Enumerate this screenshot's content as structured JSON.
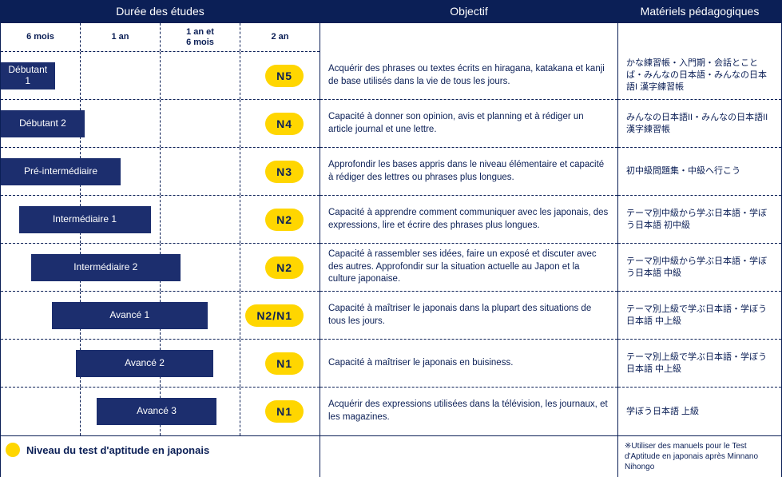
{
  "headers": {
    "duration": "Durée des études",
    "objective": "Objectif",
    "materials": "Matériels pédagogiques"
  },
  "timeAxis": [
    "6 mois",
    "1 an",
    "1 an et\n6 mois",
    "2 an"
  ],
  "chart": {
    "tickWidthPx": 75,
    "barHeightPx": 34,
    "barColor": "#1c2e6e",
    "badgeBg": "#ffd600",
    "badgeFg": "#0b1f56",
    "gridColor": "#0b1f56",
    "textColor": "#0b1f56"
  },
  "rows": [
    {
      "level": "Débutant 1",
      "barStartTicks": 0,
      "barEndTicks": 0.9,
      "badge": "N5",
      "objective": "Acquérir des phrases ou textes écrits en hiragana, katakana et kanji de base utilisés dans la vie de tous les jours.",
      "materials": "かな練習帳・入門期・会話とことば・みんなの日本語・みんなの日本語I 漢字練習帳"
    },
    {
      "level": "Débutant 2",
      "barStartTicks": 0,
      "barEndTicks": 1.4,
      "badge": "N4",
      "objective": "Capacité à donner son opinion, avis et planning et à rédiger un article journal et une lettre.",
      "materials": "みんなの日本語II・みんなの日本語II 漢字練習帳"
    },
    {
      "level": "Pré-intermédiaire",
      "barStartTicks": 0,
      "barEndTicks": 2.0,
      "badge": "N3",
      "objective": "Approfondir les bases appris dans le niveau élémentaire et capacité à rédiger des lettres ou phrases plus longues.",
      "materials": "初中級問題集・中級へ行こう"
    },
    {
      "level": "Intermédiaire 1",
      "barStartTicks": 0.3,
      "barEndTicks": 2.5,
      "badge": "N2",
      "objective": "Capacité à apprendre comment communiquer avec les japonais, des expressions, lire et écrire des phrases plus longues.",
      "materials": "テーマ別中級から学ぶ日本語・学ぼう日本語 初中級"
    },
    {
      "level": "Intermédiaire 2",
      "barStartTicks": 0.5,
      "barEndTicks": 3.0,
      "badge": "N2",
      "objective": "Capacité à rassembler ses idées, faire un exposé et discuter avec des autres. Approfondir sur la situation actuelle au Japon et la culture japonaise.",
      "materials": "テーマ別中級から学ぶ日本語・学ぼう日本語 中級"
    },
    {
      "level": "Avancé 1",
      "barStartTicks": 0.85,
      "barEndTicks": 3.45,
      "badge": "N2/N1",
      "objective": "Capacité à maîtriser le japonais dans la plupart des situations de tous les jours.",
      "materials": "テーマ別上級で学ぶ日本語・学ぼう日本語 中上級"
    },
    {
      "level": "Avancé 2",
      "barStartTicks": 1.25,
      "barEndTicks": 3.55,
      "badge": "N1",
      "objective": "Capacité à maîtriser le japonais en buisiness.",
      "materials": "テーマ別上級で学ぶ日本語・学ぼう日本語 中上級"
    },
    {
      "level": "Avancé 3",
      "barStartTicks": 1.6,
      "barEndTicks": 3.6,
      "badge": "N1",
      "objective": "Acquérir des expressions utilisées dans la télévision, les journaux, et les magazines.",
      "materials": "学ぼう日本語 上級"
    }
  ],
  "legend": "Niveau du test d'aptitude en japonais",
  "footnote": "※Utiliser des manuels pour le Test d'Aptitude en japonais après Minnano Nihongo"
}
